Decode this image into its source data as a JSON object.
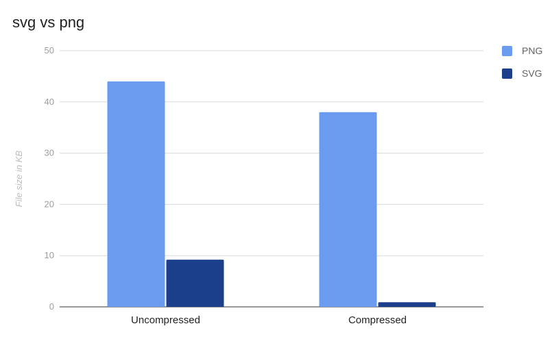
{
  "chart_data": {
    "type": "bar",
    "title": "svg vs png",
    "ylabel": "File size in KB",
    "xlabel": "",
    "categories": [
      "Uncompressed",
      "Compressed"
    ],
    "series": [
      {
        "name": "PNG",
        "color": "#6a9bef",
        "values": [
          44,
          38
        ]
      },
      {
        "name": "SVG",
        "color": "#1b3f8b",
        "values": [
          9.2,
          0.9
        ]
      }
    ],
    "ylim": [
      0,
      50
    ],
    "yticks": [
      0,
      10,
      20,
      30,
      40,
      50
    ],
    "grid": true,
    "legend_position": "right"
  }
}
